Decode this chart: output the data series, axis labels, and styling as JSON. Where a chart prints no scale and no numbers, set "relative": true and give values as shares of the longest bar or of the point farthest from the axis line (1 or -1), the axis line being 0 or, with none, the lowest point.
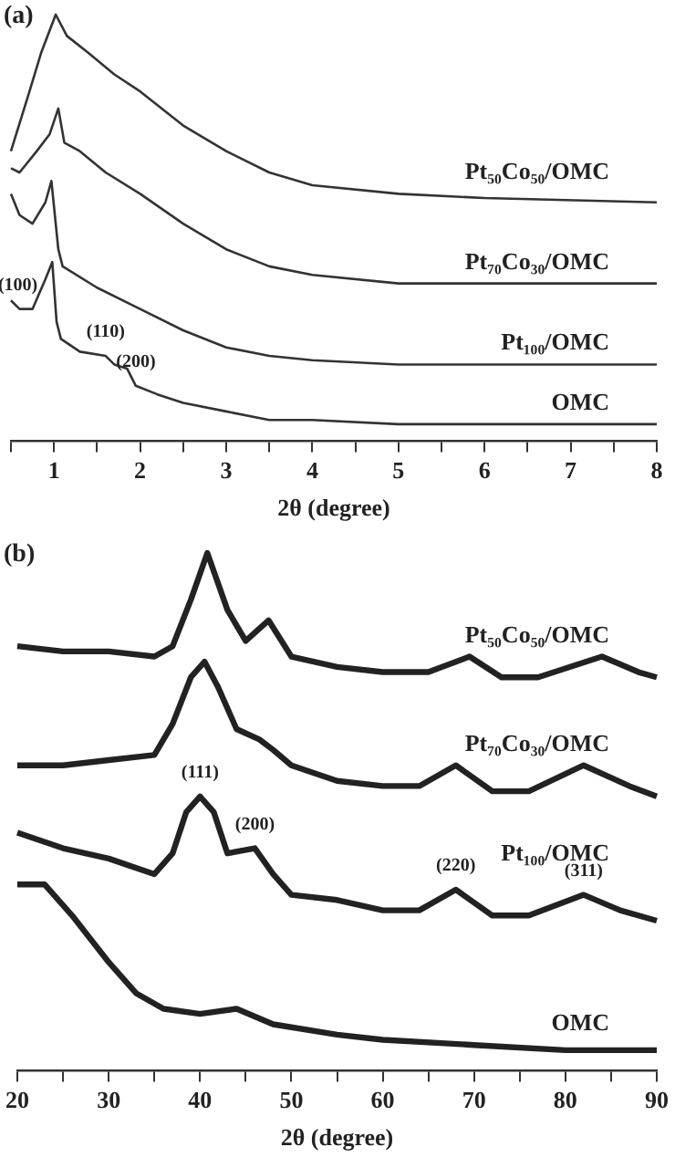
{
  "chart_data": [
    {
      "type": "line",
      "title": "(a)",
      "xlabel": "2θ (degree)",
      "relative": true,
      "marker": "none",
      "xlim": [
        0.5,
        8
      ],
      "xticks": [
        {
          "value": 0.5,
          "label": null
        },
        1,
        {
          "value": 1.5,
          "label": null
        },
        2,
        {
          "value": 2.5,
          "label": null
        },
        3,
        {
          "value": 3.5,
          "label": null
        },
        4,
        {
          "value": 4.5,
          "label": null
        },
        5,
        {
          "value": 5.5,
          "label": null
        },
        6,
        {
          "value": 6.5,
          "label": null
        },
        7,
        {
          "value": 7.5,
          "label": null
        },
        8
      ],
      "series": [
        {
          "name": "Pt₅₀Co₅₀/OMC",
          "color": "#333333",
          "x": [
            0.5,
            0.7,
            0.85,
            1.02,
            1.15,
            1.4,
            1.7,
            2,
            2.5,
            3,
            3.5,
            4,
            5,
            6,
            8
          ],
          "values": [
            0.68,
            0.81,
            0.91,
            1.0,
            0.95,
            0.91,
            0.86,
            0.82,
            0.74,
            0.68,
            0.63,
            0.6,
            0.58,
            0.57,
            0.56
          ]
        },
        {
          "name": "Pt₇₀Co₃₀/OMC",
          "color": "#333333",
          "x": [
            0.5,
            0.6,
            0.8,
            0.95,
            1.05,
            1.12,
            1.3,
            1.6,
            2,
            2.5,
            3,
            3.5,
            4,
            5,
            6,
            8
          ],
          "values": [
            0.64,
            0.63,
            0.68,
            0.72,
            0.78,
            0.7,
            0.68,
            0.63,
            0.58,
            0.51,
            0.45,
            0.41,
            0.39,
            0.37,
            0.37,
            0.37
          ]
        },
        {
          "name": "Pt₁₀₀/OMC",
          "color": "#333333",
          "x": [
            0.5,
            0.6,
            0.75,
            0.9,
            0.97,
            1.05,
            1.1,
            1.5,
            2,
            2.5,
            3,
            3.5,
            4,
            5,
            8
          ],
          "values": [
            0.58,
            0.53,
            0.51,
            0.56,
            0.61,
            0.45,
            0.41,
            0.36,
            0.31,
            0.26,
            0.22,
            0.2,
            0.19,
            0.18,
            0.18
          ]
        },
        {
          "name": "OMC",
          "color": "#333333",
          "x": [
            0.5,
            0.6,
            0.75,
            0.9,
            0.98,
            1.03,
            1.08,
            1.3,
            1.6,
            1.7,
            1.85,
            1.95,
            2.2,
            2.5,
            3,
            3.5,
            4,
            5,
            8
          ],
          "values": [
            0.33,
            0.31,
            0.31,
            0.38,
            0.42,
            0.28,
            0.24,
            0.21,
            0.2,
            0.18,
            0.17,
            0.13,
            0.11,
            0.09,
            0.07,
            0.05,
            0.05,
            0.04,
            0.04
          ]
        }
      ],
      "annotations": [
        {
          "text": "(100)",
          "x": 0.58,
          "y": 0.31
        },
        {
          "text": "(110)",
          "x": 1.6,
          "y": 0.2
        },
        {
          "text": "(200)",
          "x": 1.95,
          "y": 0.13
        }
      ]
    },
    {
      "type": "line",
      "title": "(b)",
      "xlabel": "2θ (degree)",
      "relative": true,
      "marker": "none",
      "xlim": [
        20,
        90
      ],
      "xticks": [
        20,
        {
          "value": 25,
          "label": null
        },
        30,
        {
          "value": 35,
          "label": null
        },
        40,
        {
          "value": 45,
          "label": null
        },
        50,
        {
          "value": 55,
          "label": null
        },
        60,
        {
          "value": 65,
          "label": null
        },
        70,
        {
          "value": 75,
          "label": null
        },
        80,
        {
          "value": 85,
          "label": null
        },
        90
      ],
      "series": [
        {
          "name": "Pt₅₀Co₅₀/OMC",
          "color": "#222222",
          "x": [
            20,
            25,
            30,
            35,
            37,
            39,
            40.8,
            43,
            45,
            47.5,
            50,
            55,
            60,
            65,
            69.5,
            73,
            77,
            84,
            88,
            90
          ],
          "values": [
            0.82,
            0.81,
            0.81,
            0.8,
            0.82,
            0.91,
            1.0,
            0.89,
            0.83,
            0.87,
            0.8,
            0.78,
            0.77,
            0.77,
            0.8,
            0.76,
            0.76,
            0.8,
            0.77,
            0.76
          ]
        },
        {
          "name": "Pt₇₀Co₃₀/OMC",
          "color": "#222222",
          "x": [
            20,
            25,
            30,
            35,
            37,
            39,
            40.5,
            42,
            44,
            46.5,
            48,
            50,
            55,
            60,
            64,
            68,
            72,
            76,
            82,
            87,
            90
          ],
          "values": [
            0.59,
            0.59,
            0.6,
            0.61,
            0.67,
            0.76,
            0.79,
            0.74,
            0.66,
            0.64,
            0.62,
            0.59,
            0.56,
            0.55,
            0.55,
            0.59,
            0.54,
            0.54,
            0.59,
            0.55,
            0.53
          ]
        },
        {
          "name": "Pt₁₀₀/OMC",
          "color": "#222222",
          "x": [
            20,
            25,
            30,
            35,
            37,
            38.5,
            40,
            41.5,
            43,
            46,
            48,
            50,
            55,
            60,
            64,
            68,
            72,
            76,
            82,
            86,
            90
          ],
          "values": [
            0.46,
            0.43,
            0.41,
            0.38,
            0.42,
            0.5,
            0.53,
            0.5,
            0.42,
            0.43,
            0.38,
            0.34,
            0.33,
            0.31,
            0.31,
            0.35,
            0.3,
            0.3,
            0.34,
            0.31,
            0.29
          ]
        },
        {
          "name": "OMC",
          "color": "#222222",
          "x": [
            20,
            23,
            26,
            30,
            33,
            36,
            40,
            44,
            48,
            55,
            60,
            70,
            80,
            90
          ],
          "values": [
            0.36,
            0.36,
            0.3,
            0.21,
            0.15,
            0.12,
            0.11,
            0.12,
            0.09,
            0.07,
            0.06,
            0.05,
            0.04,
            0.04
          ]
        }
      ],
      "annotations": [
        {
          "text": "(111)",
          "x": 40,
          "y": 0.53
        },
        {
          "text": "(200)",
          "x": 46,
          "y": 0.43
        },
        {
          "text": "(220)",
          "x": 68,
          "y": 0.35
        },
        {
          "text": "(311)",
          "x": 82,
          "y": 0.34
        }
      ]
    }
  ]
}
